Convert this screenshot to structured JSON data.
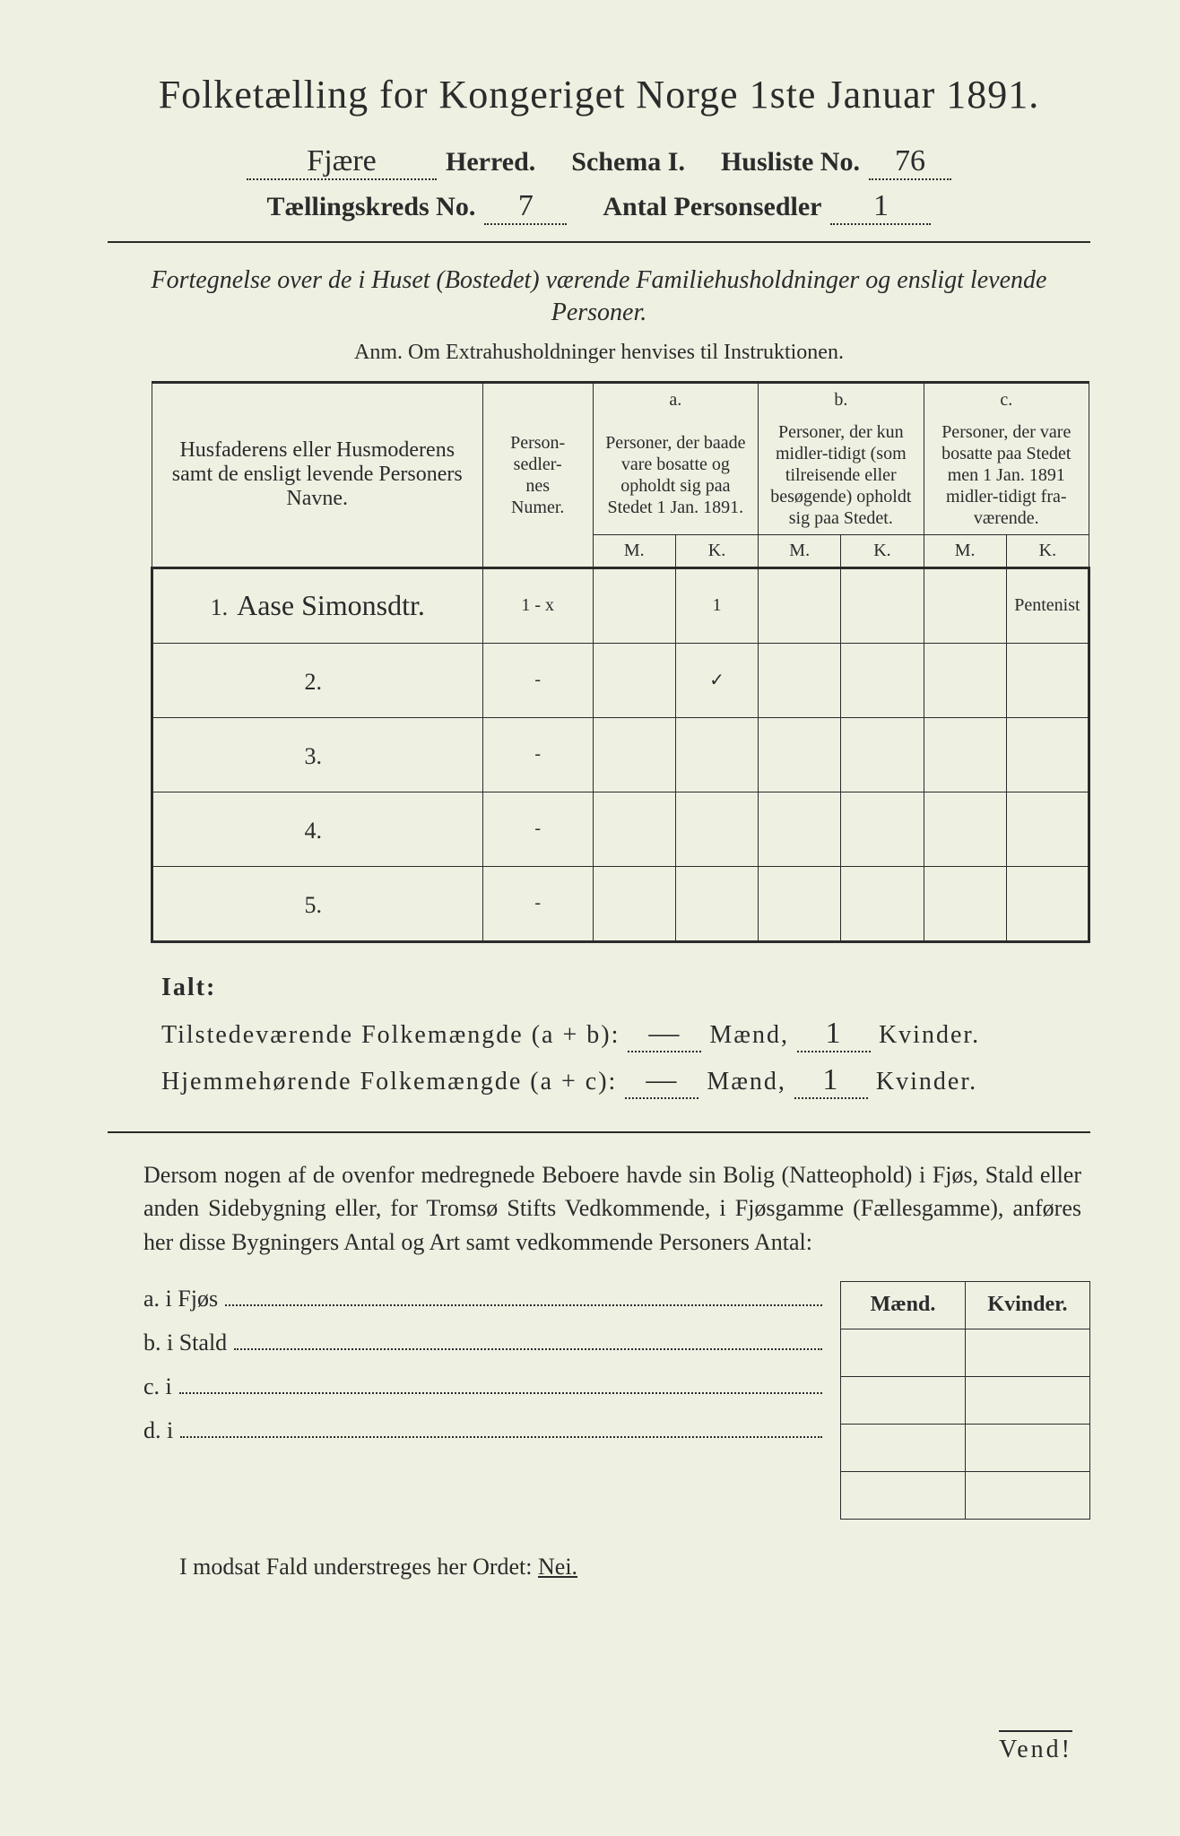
{
  "title": "Folketælling for Kongeriget Norge 1ste Januar 1891.",
  "header": {
    "herred_value": "Fjære",
    "herred_label": "Herred.",
    "schema_label": "Schema I.",
    "husliste_label": "Husliste No.",
    "husliste_value": "76",
    "kreds_label": "Tællingskreds No.",
    "kreds_value": "7",
    "antal_label": "Antal Personsedler",
    "antal_value": "1"
  },
  "note_italic": "Fortegnelse over de i Huset (Bostedet) værende Familiehusholdninger og ensligt levende Personer.",
  "anm": "Anm.   Om Extrahusholdninger henvises til Instruktionen.",
  "table": {
    "col_names": "Husfaderens eller Husmoderens samt de ensligt levende Personers Navne.",
    "col_numer": "Person-\nsedler-\nnes\nNumer.",
    "a_label": "a.",
    "a_text": "Personer, der baade vare bosatte og opholdt sig paa Stedet 1 Jan. 1891.",
    "b_label": "b.",
    "b_text": "Personer, der kun midler-tidigt (som tilreisende eller besøgende) opholdt sig paa Stedet.",
    "c_label": "c.",
    "c_text": "Personer, der vare bosatte paa Stedet men 1 Jan. 1891 midler-tidigt fra-værende.",
    "M": "M.",
    "K": "K.",
    "rows": [
      {
        "num": "1.",
        "name": "Aase Simonsdtr.",
        "numer": "1 - x",
        "aM": "",
        "aK": "1",
        "bM": "",
        "bK": "",
        "cM": "",
        "cK": "Pentenist"
      },
      {
        "num": "2.",
        "name": "",
        "numer": "-",
        "aM": "",
        "aK": "✓",
        "bM": "",
        "bK": "",
        "cM": "",
        "cK": ""
      },
      {
        "num": "3.",
        "name": "",
        "numer": "-",
        "aM": "",
        "aK": "",
        "bM": "",
        "bK": "",
        "cM": "",
        "cK": ""
      },
      {
        "num": "4.",
        "name": "",
        "numer": "-",
        "aM": "",
        "aK": "",
        "bM": "",
        "bK": "",
        "cM": "",
        "cK": ""
      },
      {
        "num": "5.",
        "name": "",
        "numer": "-",
        "aM": "",
        "aK": "",
        "bM": "",
        "bK": "",
        "cM": "",
        "cK": ""
      }
    ]
  },
  "ialt": {
    "title": "Ialt:",
    "line1_label": "Tilstedeværende Folkemængde (a + b):",
    "line1_m": "—",
    "line1_m_label": "Mænd,",
    "line1_k": "1",
    "line1_k_label": "Kvinder.",
    "line2_label": "Hjemmehørende Folkemængde (a + c):",
    "line2_m": "—",
    "line2_m_label": "Mænd,",
    "line2_k": "1",
    "line2_k_label": "Kvinder."
  },
  "para": "Dersom nogen af de ovenfor medregnede Beboere havde sin Bolig (Natteophold) i Fjøs, Stald eller anden Sidebygning eller, for Tromsø Stifts Vedkommende, i Fjøsgamme (Fællesgamme), anføres her disse Bygningers Antal og Art samt vedkommende Personers Antal:",
  "sub": {
    "mk_m": "Mænd.",
    "mk_k": "Kvinder.",
    "a": "a.   i      Fjøs",
    "b": "b.   i      Stald",
    "c": "c.   i",
    "d": "d.   i"
  },
  "footer": {
    "text_pre": "I modsat Fald understreges her Ordet: ",
    "nei": "Nei.",
    "vend": "Vend!"
  },
  "style": {
    "background": "#eef0e2",
    "text_color": "#2b2b2b",
    "title_fontsize": 44,
    "body_fontsize": 26
  }
}
